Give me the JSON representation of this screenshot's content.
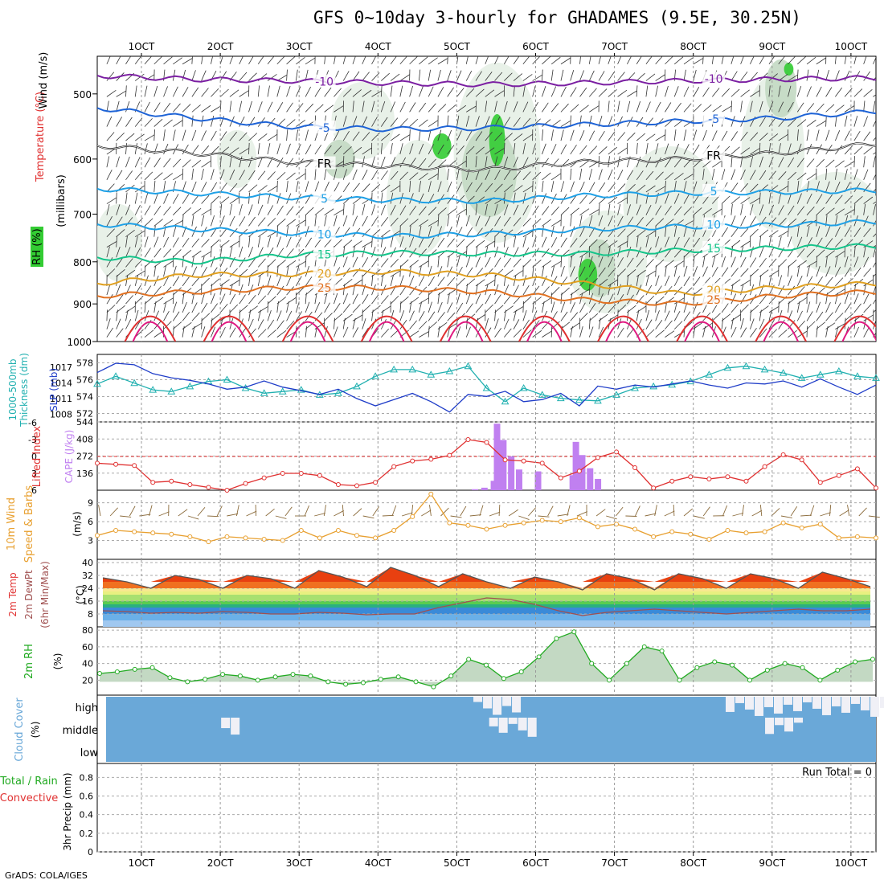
{
  "title": "GFS 0~10day 3-hourly for GHADAMES (9.5E, 30.25N)",
  "credit": "GrADS: COLA/IGES",
  "colors": {
    "rh_light": "#e6f0e6",
    "rh_mid": "#c3d9c3",
    "rh_dark": "#8fb08f",
    "rh_bright": "#33cc33",
    "temp_purple": "#7b1fa2",
    "temp_blue": "#1e63d6",
    "temp_sky": "#1ea0e6",
    "temp_cyan": "#14c4c4",
    "temp_green": "#14c48a",
    "temp_orange": "#e0a020",
    "temp_darkorange": "#e07020",
    "temp_red": "#e03030",
    "thickness": "#20b0b0",
    "slp": "#1e3cc8",
    "lifted": "#e03030",
    "cape": "#c080f0",
    "wind10": "#e8a030",
    "barb10": "#8a6a3a",
    "temp2m": "#555555",
    "dewpt": "#a05050",
    "rh2m": "#22aa22",
    "cloud": "#6aa8d8",
    "cloud_gap": "#f0f0f6"
  },
  "top_axis": {
    "labels": [
      "1OCT",
      "2OCT",
      "3OCT",
      "4OCT",
      "5OCT",
      "6OCT",
      "7OCT",
      "8OCT",
      "9OCT",
      "10OCT"
    ]
  },
  "bottom_axis": {
    "labels": [
      "1OCT",
      "2OCT",
      "3OCT",
      "4OCT",
      "5OCT",
      "6OCT",
      "7OCT",
      "8OCT",
      "9OCT",
      "10OCT"
    ]
  },
  "panels": [
    {
      "id": "upper",
      "label_lines": [
        "Wind (m/s)",
        "Temperature (°C)",
        "RH (%)",
        "(millibars)"
      ]
    },
    {
      "id": "thick_slp",
      "label_lines": [
        "SLP (mb)",
        "1000-500mb",
        "Thickness (dm)"
      ]
    },
    {
      "id": "cape_li",
      "label_lines": [
        "CAPE (J/kg)",
        "Lifted Index"
      ]
    },
    {
      "id": "wind10",
      "label_lines": [
        "(m/s)",
        "Speed & Barbs",
        "10m Wind"
      ]
    },
    {
      "id": "temp2m",
      "label_lines": [
        "(°C)",
        "2m Temp",
        "2m DewPt",
        "(6hr Min/Max)"
      ]
    },
    {
      "id": "rh2m",
      "label_lines": [
        "(%)",
        "2m RH"
      ]
    },
    {
      "id": "cloud",
      "label_lines": [
        "(%)",
        "Cloud Cover"
      ]
    },
    {
      "id": "precip",
      "label_lines": [
        "3hr Precip (mm)",
        "Total / Rain",
        "Convective"
      ],
      "run_total": "Run Total = 0"
    }
  ],
  "chart_data": [
    {
      "type": "contour",
      "title": "Wind (m/s), Temperature (°C), RH (%)",
      "ylabel": "(millibars)",
      "y_ticks": [
        500,
        600,
        700,
        800,
        900,
        1000
      ],
      "ylim": [
        1000,
        450
      ],
      "y_scale": "log-pressure",
      "isotherms": [
        {
          "label": "-10",
          "pressure": [
            475,
            480,
            482,
            485,
            487,
            485,
            482,
            480,
            478
          ]
        },
        {
          "label": "-5",
          "pressure": [
            520,
            535,
            548,
            552,
            550,
            545,
            540,
            535,
            525
          ]
        },
        {
          "label": "FR",
          "pressure": [
            578,
            590,
            605,
            612,
            618,
            605,
            600,
            590,
            575
          ]
        },
        {
          "label": "5",
          "pressure": [
            652,
            660,
            668,
            673,
            675,
            665,
            660,
            658,
            655
          ]
        },
        {
          "label": "10",
          "pressure": [
            720,
            730,
            738,
            745,
            740,
            730,
            725,
            722,
            715
          ]
        },
        {
          "label": "15",
          "pressure": [
            790,
            800,
            785,
            780,
            782,
            782,
            775,
            770,
            765
          ]
        },
        {
          "label": "20",
          "pressure": [
            850,
            830,
            828,
            822,
            830,
            850,
            875,
            860,
            850
          ]
        },
        {
          "label": "25",
          "pressure": [
            880,
            870,
            860,
            860,
            870,
            890,
            900,
            880,
            870
          ]
        }
      ]
    },
    {
      "type": "line",
      "title": "1000-500mb Thickness (dm) / SLP (mb)",
      "y_ticks_left": [
        "572",
        "574",
        "576",
        "578"
      ],
      "y_ticks_right": [
        "1008",
        "1011",
        "1014",
        "1017"
      ],
      "series": [
        {
          "name": "1000-500mb Thickness (dm)",
          "axis": "left",
          "values": [
            575.5,
            576.4,
            575.6,
            574.8,
            574.6,
            575.2,
            575.8,
            576.0,
            575.0,
            574.4,
            574.6,
            574.8,
            574.2,
            574.4,
            575.2,
            576.4,
            577.2,
            577.2,
            576.6,
            577.0,
            577.6,
            575.0,
            573.4,
            575.0,
            574.2,
            573.8,
            573.6,
            573.5,
            574.2,
            575.0,
            575.2,
            575.4,
            575.8,
            576.6,
            577.4,
            577.6,
            577.2,
            576.8,
            576.2,
            576.6,
            577.0,
            576.4,
            576.2
          ]
        },
        {
          "name": "SLP (mb)",
          "axis": "right",
          "values": [
            1016,
            1017.8,
            1017.5,
            1015.8,
            1015.0,
            1014.5,
            1013.8,
            1012.8,
            1013.2,
            1014.4,
            1013.2,
            1012.5,
            1011.8,
            1012.8,
            1011.0,
            1009.6,
            1010.8,
            1012.0,
            1010.4,
            1008.4,
            1011.8,
            1011.4,
            1012.4,
            1010.4,
            1010.8,
            1012.0,
            1009.6,
            1013.4,
            1012.8,
            1013.6,
            1013.2,
            1013.8,
            1014.4,
            1013.6,
            1013.0,
            1014.0,
            1013.8,
            1014.4,
            1013.2,
            1014.8,
            1013.2,
            1011.8,
            1013.6
          ]
        }
      ]
    },
    {
      "type": "bar+line",
      "title": "CAPE (J/kg) / Lifted Index",
      "y_ticks_left": [
        "544",
        "408",
        "272",
        "136"
      ],
      "y_ticks_right": [
        "-6",
        "-3",
        "0",
        "3",
        "6"
      ],
      "series": [
        {
          "name": "CAPE (J/kg)",
          "type": "bar",
          "bars": [
            {
              "t": 4.72,
              "v": 8
            },
            {
              "t": 4.84,
              "v": 20
            },
            {
              "t": 4.96,
              "v": 75
            },
            {
              "t": 5.0,
              "v": 530
            },
            {
              "t": 5.08,
              "v": 400
            },
            {
              "t": 5.18,
              "v": 270
            },
            {
              "t": 5.28,
              "v": 165
            },
            {
              "t": 5.52,
              "v": 150
            },
            {
              "t": 5.96,
              "v": 120
            },
            {
              "t": 6.0,
              "v": 385
            },
            {
              "t": 6.08,
              "v": 280
            },
            {
              "t": 6.18,
              "v": 175
            },
            {
              "t": 6.28,
              "v": 90
            }
          ]
        },
        {
          "name": "Lifted Index",
          "type": "line",
          "values": [
            1.2,
            1.4,
            1.6,
            4.6,
            4.4,
            5.0,
            5.5,
            6.0,
            4.8,
            3.8,
            3.0,
            3.0,
            3.4,
            5.0,
            5.2,
            4.6,
            1.8,
            0.8,
            0.5,
            -0.2,
            -3.0,
            -2.5,
            0.6,
            0.8,
            1.2,
            3.8,
            2.6,
            0.2,
            -0.8,
            2.0,
            5.6,
            4.4,
            3.6,
            4.0,
            3.6,
            4.4,
            1.8,
            -0.3,
            0.6,
            4.6,
            3.4,
            2.2,
            5.6
          ]
        }
      ]
    },
    {
      "type": "line",
      "title": "10m Wind Speed & Barbs",
      "ylabel": "(m/s)",
      "y_ticks": [
        "3",
        "6",
        "9"
      ],
      "series": [
        {
          "name": "10m Wind Speed",
          "values": [
            3.8,
            4.6,
            4.4,
            4.2,
            4.0,
            3.6,
            2.8,
            3.6,
            3.4,
            3.2,
            3.0,
            4.6,
            3.4,
            4.6,
            3.8,
            3.4,
            4.6,
            6.8,
            10.4,
            5.8,
            5.4,
            4.8,
            5.4,
            5.8,
            6.2,
            6.0,
            6.6,
            5.2,
            5.6,
            4.8,
            3.6,
            4.4,
            4.0,
            3.2,
            4.6,
            4.2,
            4.4,
            5.8,
            5.0,
            5.6,
            3.4,
            3.6,
            3.4
          ]
        }
      ]
    },
    {
      "type": "area",
      "title": "2m Temp / 2m DewPt (6hr Min/Max)",
      "ylabel": "(°C)",
      "y_ticks": [
        "8",
        "16",
        "24",
        "32",
        "40"
      ],
      "series": [
        {
          "name": "2m Temp",
          "values": [
            30.5,
            28,
            24,
            32,
            29.5,
            24,
            32,
            30,
            24,
            35,
            31,
            25,
            37,
            32,
            25,
            33,
            28,
            24,
            31,
            28,
            23,
            33,
            30,
            23,
            33,
            30,
            24,
            33,
            30,
            24,
            34,
            30,
            25
          ]
        },
        {
          "name": "2m DewPt",
          "values": [
            10,
            9.5,
            8.5,
            9,
            8.5,
            9.5,
            9,
            8,
            8,
            9,
            8.5,
            7.5,
            8,
            8,
            12,
            15,
            18,
            17,
            14,
            10,
            7,
            9,
            10,
            11,
            10,
            9,
            8,
            9,
            10,
            11,
            10,
            10,
            11
          ]
        }
      ]
    },
    {
      "type": "area",
      "title": "2m RH",
      "ylabel": "(%)",
      "y_ticks": [
        "20",
        "40",
        "60",
        "80"
      ],
      "series": [
        {
          "name": "2m RH",
          "values": [
            28,
            30,
            33,
            35,
            23,
            18,
            21,
            27,
            25,
            20,
            24,
            27,
            25,
            18,
            15,
            17,
            21,
            24,
            18,
            12,
            25,
            45,
            38,
            22,
            30,
            48,
            70,
            78,
            40,
            20,
            40,
            60,
            55,
            20,
            35,
            42,
            38,
            20,
            32,
            40,
            35,
            20,
            32,
            42,
            45
          ]
        }
      ]
    },
    {
      "type": "heatmap",
      "title": "Cloud Cover (%)",
      "y_labels": [
        "high",
        "middle",
        "low"
      ],
      "clear_cells": [
        {
          "layer": "high",
          "t0": 4.7,
          "t1": 5.3
        },
        {
          "layer": "high",
          "t0": 7.9,
          "t1": 10.3
        },
        {
          "layer": "middle",
          "t0": 1.5,
          "t1": 1.7
        },
        {
          "layer": "middle",
          "t0": 4.9,
          "t1": 5.5
        },
        {
          "layer": "middle",
          "t0": 8.4,
          "t1": 8.8
        }
      ]
    },
    {
      "type": "bar",
      "title": "3hr Precip (mm) Total / Rain / Convective",
      "y_ticks": [
        "0",
        "0.2",
        "0.4",
        "0.6",
        "0.8"
      ],
      "values": [],
      "run_total": "Run Total = 0"
    }
  ]
}
